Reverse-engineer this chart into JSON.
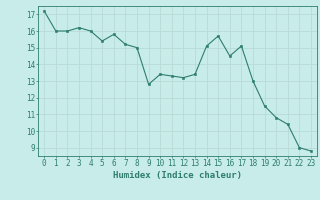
{
  "x": [
    0,
    1,
    2,
    3,
    4,
    5,
    6,
    7,
    8,
    9,
    10,
    11,
    12,
    13,
    14,
    15,
    16,
    17,
    18,
    19,
    20,
    21,
    22,
    23
  ],
  "y": [
    17.2,
    16.0,
    16.0,
    16.2,
    16.0,
    15.4,
    15.8,
    15.2,
    15.0,
    12.8,
    13.4,
    13.3,
    13.2,
    13.4,
    15.1,
    15.7,
    14.5,
    15.1,
    13.0,
    11.5,
    10.8,
    10.4,
    9.0,
    8.8
  ],
  "bg_color": "#c8ece9",
  "grid_color": "#b8dbd8",
  "line_color": "#2e7d6e",
  "marker_color": "#2e7d6e",
  "xlabel": "Humidex (Indice chaleur)",
  "xlim": [
    -0.5,
    23.5
  ],
  "ylim": [
    8.5,
    17.5
  ],
  "yticks": [
    9,
    10,
    11,
    12,
    13,
    14,
    15,
    16,
    17
  ],
  "xticks": [
    0,
    1,
    2,
    3,
    4,
    5,
    6,
    7,
    8,
    9,
    10,
    11,
    12,
    13,
    14,
    15,
    16,
    17,
    18,
    19,
    20,
    21,
    22,
    23
  ],
  "tick_fontsize": 5.5,
  "label_fontsize": 6.5
}
